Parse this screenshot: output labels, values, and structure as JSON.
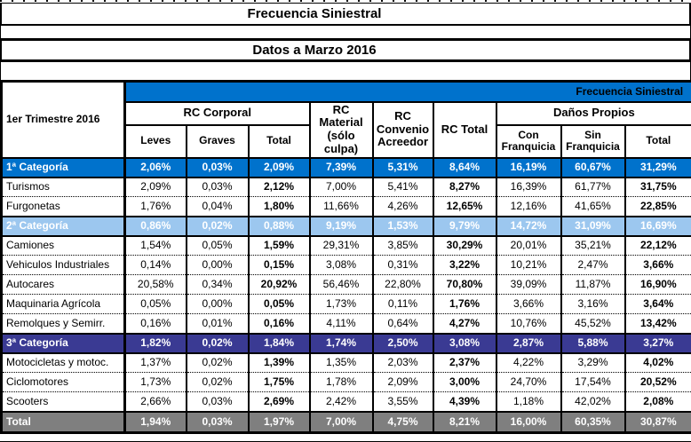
{
  "page": {
    "title": "Frecuencia Siniestral",
    "subtitle": "Datos a Marzo 2016"
  },
  "colors": {
    "band_blue": "#0072CC",
    "light_blue": "#9CC7EF",
    "navy": "#3A3A93",
    "gray": "#7F7F7F",
    "white_text": "#FFFFFF"
  },
  "table": {
    "corner_label": "1er Trimestre 2016",
    "band_label": "Frecuencia Siniestral",
    "group_rc_corporal": "RC Corporal",
    "group_danos_propios": "Daños Propios",
    "col_rc_material": "RC Material (sólo culpa)",
    "col_rc_convenio": "RC Convenio Acreedor",
    "col_rc_total": "RC Total",
    "sub_leves": "Leves",
    "sub_graves": "Graves",
    "sub_total": "Total",
    "sub_con_franquicia": "Con Franquicia",
    "sub_sin_franquicia": "Sin Franquicia",
    "sub_dp_total": "Total",
    "bold_value_columns": [
      2,
      5,
      8
    ],
    "rows": [
      {
        "label": "1ª Categoría",
        "type": "cat1",
        "values": [
          "2,06%",
          "0,03%",
          "2,09%",
          "7,39%",
          "5,31%",
          "8,64%",
          "16,19%",
          "60,67%",
          "31,29%"
        ]
      },
      {
        "label": "Turismos",
        "type": "data",
        "values": [
          "2,09%",
          "0,03%",
          "2,12%",
          "7,00%",
          "5,41%",
          "8,27%",
          "16,39%",
          "61,77%",
          "31,75%"
        ]
      },
      {
        "label": "Furgonetas",
        "type": "data",
        "values": [
          "1,76%",
          "0,04%",
          "1,80%",
          "11,66%",
          "4,26%",
          "12,65%",
          "12,16%",
          "41,65%",
          "22,85%"
        ]
      },
      {
        "label": "2ª Categoría",
        "type": "cat2",
        "values": [
          "0,86%",
          "0,02%",
          "0,88%",
          "9,19%",
          "1,53%",
          "9,79%",
          "14,72%",
          "31,09%",
          "16,69%"
        ]
      },
      {
        "label": "Camiones",
        "type": "data",
        "values": [
          "1,54%",
          "0,05%",
          "1,59%",
          "29,31%",
          "3,85%",
          "30,29%",
          "20,01%",
          "35,21%",
          "22,12%"
        ]
      },
      {
        "label": "Vehiculos Industriales",
        "type": "data",
        "values": [
          "0,14%",
          "0,00%",
          "0,15%",
          "3,08%",
          "0,31%",
          "3,22%",
          "10,21%",
          "2,47%",
          "3,66%"
        ]
      },
      {
        "label": "Autocares",
        "type": "data",
        "values": [
          "20,58%",
          "0,34%",
          "20,92%",
          "56,46%",
          "22,80%",
          "70,80%",
          "39,09%",
          "11,87%",
          "16,90%"
        ]
      },
      {
        "label": "Maquinaria Agrícola",
        "type": "data",
        "values": [
          "0,05%",
          "0,00%",
          "0,05%",
          "1,73%",
          "0,11%",
          "1,76%",
          "3,66%",
          "3,16%",
          "3,64%"
        ]
      },
      {
        "label": "Remolques y Semirr.",
        "type": "data",
        "values": [
          "0,16%",
          "0,01%",
          "0,16%",
          "4,11%",
          "0,64%",
          "4,27%",
          "10,76%",
          "45,52%",
          "13,42%"
        ]
      },
      {
        "label": "3ª Categoría",
        "type": "cat3",
        "values": [
          "1,82%",
          "0,02%",
          "1,84%",
          "1,74%",
          "2,50%",
          "3,08%",
          "2,87%",
          "5,88%",
          "3,27%"
        ]
      },
      {
        "label": "Motocicletas y motoc.",
        "type": "data",
        "values": [
          "1,37%",
          "0,02%",
          "1,39%",
          "1,35%",
          "2,03%",
          "2,37%",
          "4,22%",
          "3,29%",
          "4,02%"
        ]
      },
      {
        "label": "Ciclomotores",
        "type": "data",
        "values": [
          "1,73%",
          "0,02%",
          "1,75%",
          "1,78%",
          "2,09%",
          "3,00%",
          "24,70%",
          "17,54%",
          "20,52%"
        ]
      },
      {
        "label": "Scooters",
        "type": "data",
        "values": [
          "2,66%",
          "0,03%",
          "2,69%",
          "2,42%",
          "3,55%",
          "4,39%",
          "1,18%",
          "42,02%",
          "2,08%"
        ]
      },
      {
        "label": "Total",
        "type": "total",
        "values": [
          "1,94%",
          "0,03%",
          "1,97%",
          "7,00%",
          "4,75%",
          "8,21%",
          "16,00%",
          "60,35%",
          "30,87%"
        ]
      }
    ]
  }
}
